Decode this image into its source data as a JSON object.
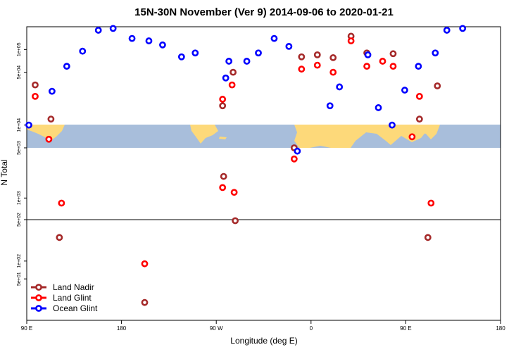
{
  "chart_data": {
    "type": "scatter",
    "title": "15N-30N November (Ver 9)   2014-09-06 to 2020-01-21",
    "xlabel": "Longitude (deg E)",
    "ylabel": "N Total",
    "y_scale": "log",
    "x_ticks": [
      {
        "value": 90,
        "label": "90 E"
      },
      {
        "value": 180,
        "label": "180"
      },
      {
        "value": 270,
        "label": "90 W"
      },
      {
        "value": 360,
        "label": "0"
      },
      {
        "value": 450,
        "label": "90 E"
      },
      {
        "value": 540,
        "label": "180"
      }
    ],
    "xlim": [
      90,
      540
    ],
    "panels": [
      {
        "name": "top",
        "ylim": [
          5000,
          200000
        ],
        "ticks": [
          {
            "value": 5000,
            "label": "5e+03"
          },
          {
            "value": 10000,
            "label": "1e+04"
          },
          {
            "value": 50000,
            "label": "5e+04"
          },
          {
            "value": 100000,
            "label": "1e+05"
          }
        ]
      },
      {
        "name": "middle",
        "ylim": [
          500,
          5000
        ],
        "ticks": [
          {
            "value": 500,
            "label": "5e+02"
          },
          {
            "value": 1000,
            "label": "1e+03"
          }
        ]
      },
      {
        "name": "bottom",
        "ylim": [
          10,
          500
        ],
        "ticks": [
          {
            "value": 50,
            "label": "5e+01"
          },
          {
            "value": 100,
            "label": "1e+02"
          }
        ]
      }
    ],
    "legend_position": "bottom-left",
    "series": [
      {
        "name": "Land Nadir",
        "color": "#a52a2a",
        "points": [
          [
            98,
            34000
          ],
          [
            113,
            12000
          ],
          [
            121,
            250
          ],
          [
            202,
            20
          ],
          [
            276,
            18000
          ],
          [
            286,
            50000
          ],
          [
            277,
            2000
          ],
          [
            288,
            480
          ],
          [
            344,
            5000
          ],
          [
            351,
            80000
          ],
          [
            366,
            85000
          ],
          [
            381,
            78000
          ],
          [
            398,
            150000
          ],
          [
            413,
            90000
          ],
          [
            438,
            88000
          ],
          [
            463,
            12000
          ],
          [
            471,
            250
          ],
          [
            480,
            33000
          ]
        ]
      },
      {
        "name": "Land Glint",
        "color": "#ff0000",
        "points": [
          [
            98,
            24000
          ],
          [
            111,
            6500
          ],
          [
            123,
            850
          ],
          [
            202,
            90
          ],
          [
            276,
            22000
          ],
          [
            285,
            34000
          ],
          [
            276,
            1400
          ],
          [
            287,
            1200
          ],
          [
            344,
            3500
          ],
          [
            351,
            55000
          ],
          [
            366,
            62000
          ],
          [
            381,
            50000
          ],
          [
            398,
            130000
          ],
          [
            413,
            60000
          ],
          [
            428,
            70000
          ],
          [
            438,
            60000
          ],
          [
            456,
            7000
          ],
          [
            463,
            24000
          ],
          [
            474,
            850
          ]
        ]
      },
      {
        "name": "Ocean Glint",
        "color": "#0000ff",
        "points": [
          [
            92,
            10000
          ],
          [
            114,
            28000
          ],
          [
            128,
            60000
          ],
          [
            143,
            95000
          ],
          [
            158,
            180000
          ],
          [
            172,
            190000
          ],
          [
            190,
            140000
          ],
          [
            206,
            130000
          ],
          [
            219,
            115000
          ],
          [
            237,
            80000
          ],
          [
            250,
            90000
          ],
          [
            279,
            42000
          ],
          [
            282,
            70000
          ],
          [
            299,
            70000
          ],
          [
            310,
            90000
          ],
          [
            325,
            140000
          ],
          [
            339,
            110000
          ],
          [
            347,
            4500
          ],
          [
            378,
            18000
          ],
          [
            387,
            32000
          ],
          [
            414,
            85000
          ],
          [
            424,
            17000
          ],
          [
            437,
            10000
          ],
          [
            449,
            29000
          ],
          [
            462,
            60000
          ],
          [
            478,
            90000
          ],
          [
            489,
            180000
          ],
          [
            504,
            190000
          ]
        ]
      }
    ]
  }
}
